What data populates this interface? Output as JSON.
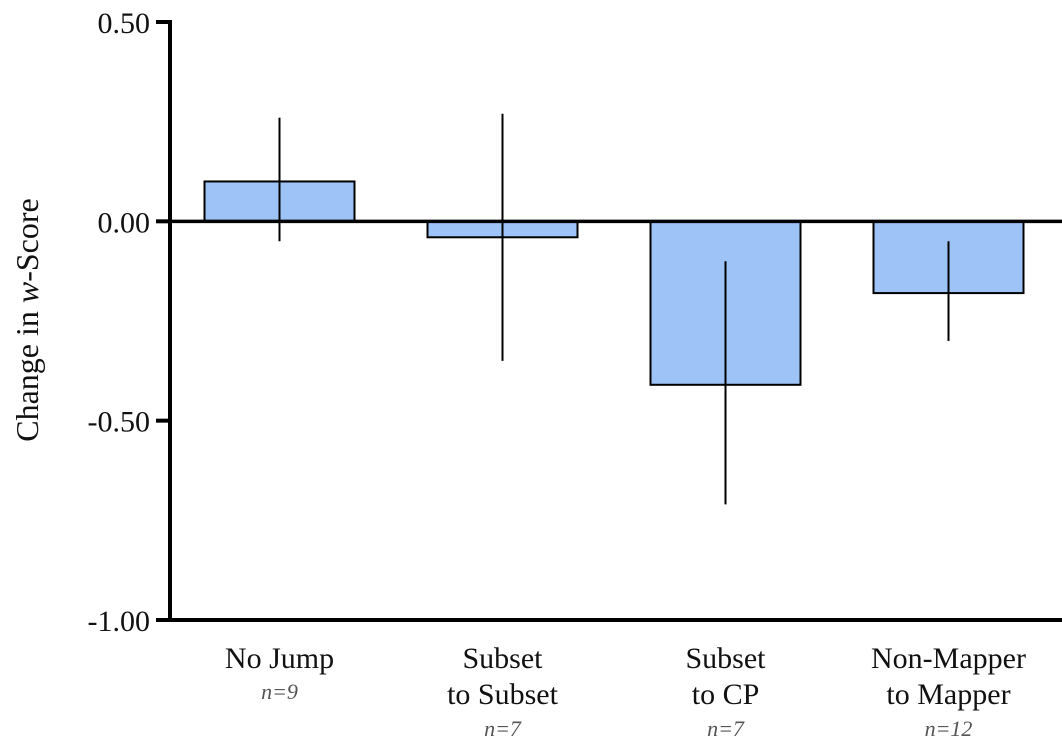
{
  "chart_data": {
    "type": "bar",
    "categories": [
      {
        "lines": [
          "No Jump"
        ],
        "n": "n=9"
      },
      {
        "lines": [
          "Subset",
          "to Subset"
        ],
        "n": "n=7"
      },
      {
        "lines": [
          "Subset",
          "to CP"
        ],
        "n": "n=7"
      },
      {
        "lines": [
          "Non-Mapper",
          "to Mapper"
        ],
        "n": "n=12"
      }
    ],
    "values": [
      0.1,
      -0.04,
      -0.41,
      -0.18
    ],
    "error_low": [
      -0.05,
      -0.35,
      -0.71,
      -0.3
    ],
    "error_high": [
      0.26,
      0.27,
      -0.1,
      -0.05
    ],
    "ylabel": "Change in w-Score",
    "ylabel_parts": [
      "Change in ",
      "w",
      "-Score"
    ],
    "ylim": [
      -1.0,
      0.5
    ],
    "yticks": [
      0.5,
      0.0,
      -0.5,
      -1.0
    ],
    "ytick_labels": [
      "0.50",
      "0.00",
      "-0.50",
      "-1.00"
    ],
    "bar_color": "#9dc3f7",
    "grid": false
  }
}
